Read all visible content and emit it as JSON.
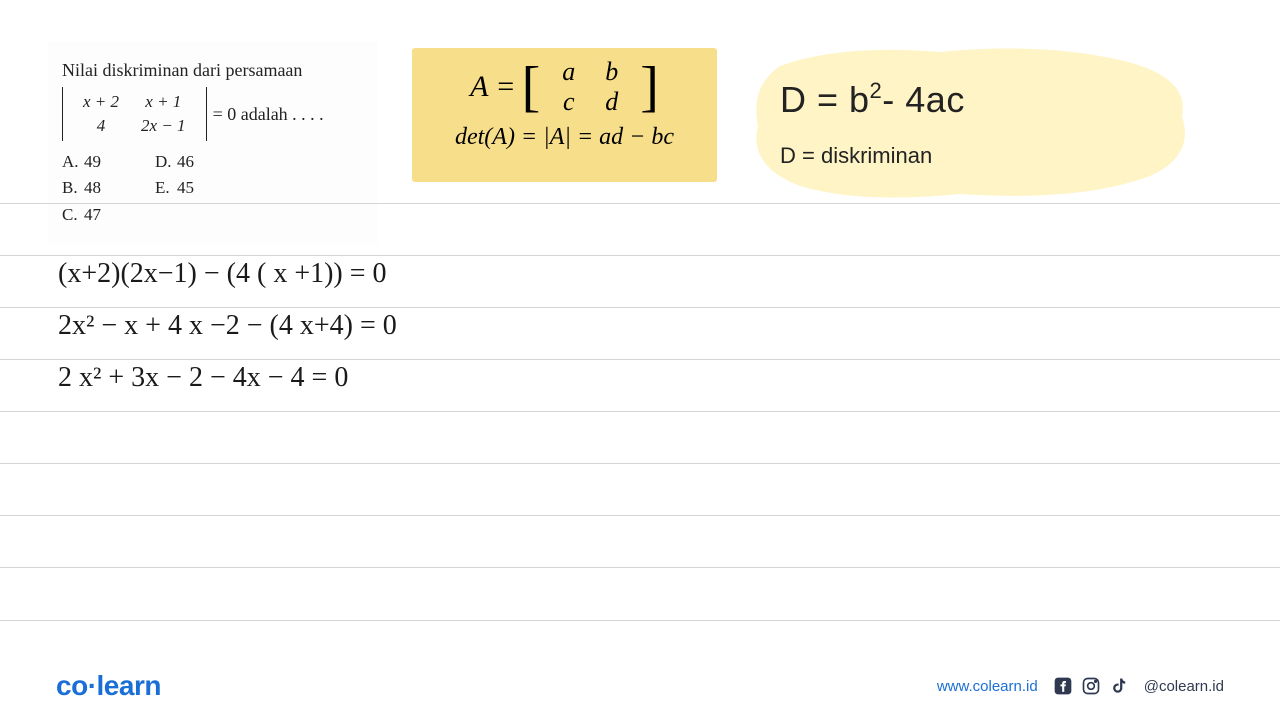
{
  "problem": {
    "title": "Nilai diskriminan dari persamaan",
    "matrix": {
      "a": "x + 2",
      "b": "x + 1",
      "c": "4",
      "d": "2x − 1"
    },
    "tail": "= 0 adalah . . . .",
    "choices_left": [
      {
        "letter": "A.",
        "value": "49"
      },
      {
        "letter": "B.",
        "value": "48"
      },
      {
        "letter": "C.",
        "value": "47"
      }
    ],
    "choices_right": [
      {
        "letter": "D.",
        "value": "46"
      },
      {
        "letter": "E.",
        "value": "45"
      }
    ]
  },
  "reference": {
    "matrix_label": "A =",
    "matrix": {
      "a": "a",
      "b": "b",
      "c": "c",
      "d": "d"
    },
    "det_line": "det(A) = |A| = ad − bc",
    "box_bg": "#f7de8a"
  },
  "discriminant": {
    "formula_html": "D = b<sup>2</sup>- 4ac",
    "label": "D = diskriminan",
    "blob_fill": "#fff4c6"
  },
  "handwriting": {
    "lines": [
      "(x+2)(2x−1) − (4 ( x +1)) = 0",
      "2x² − x + 4 x −2 − (4 x+4) = 0",
      "2 x² + 3x − 2 − 4x − 4 = 0"
    ],
    "color": "#1a1a1a",
    "fontsize": 28
  },
  "layout": {
    "rule_color": "#d5d5d5",
    "rule_y": [
      203,
      255,
      307,
      359,
      411,
      463,
      515,
      567,
      620
    ]
  },
  "footer": {
    "logo_prefix": "co",
    "logo_suffix": "learn",
    "url": "www.colearn.id",
    "handle": "@colearn.id",
    "brand_color": "#1a6fd6",
    "icon_color": "#2f3a52"
  }
}
